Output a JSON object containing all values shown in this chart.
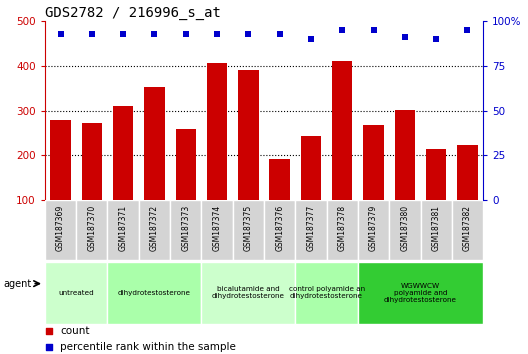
{
  "title": "GDS2782 / 216996_s_at",
  "samples": [
    "GSM187369",
    "GSM187370",
    "GSM187371",
    "GSM187372",
    "GSM187373",
    "GSM187374",
    "GSM187375",
    "GSM187376",
    "GSM187377",
    "GSM187378",
    "GSM187379",
    "GSM187380",
    "GSM187381",
    "GSM187382"
  ],
  "counts": [
    278,
    273,
    310,
    352,
    258,
    407,
    390,
    191,
    244,
    412,
    267,
    302,
    215,
    224
  ],
  "percentiles": [
    93,
    93,
    93,
    93,
    93,
    93,
    93,
    93,
    90,
    95,
    95,
    91,
    90,
    95
  ],
  "bar_color": "#cc0000",
  "dot_color": "#0000cc",
  "ylim_left": [
    100,
    500
  ],
  "ylim_right": [
    0,
    100
  ],
  "yticks_left": [
    100,
    200,
    300,
    400,
    500
  ],
  "yticks_right": [
    0,
    25,
    50,
    75,
    100
  ],
  "left_tick_color": "#cc0000",
  "right_tick_color": "#0000cc",
  "groups": [
    {
      "label": "untreated",
      "start": 0,
      "end": 1,
      "color": "#ccffcc"
    },
    {
      "label": "dihydrotestosterone",
      "start": 2,
      "end": 4,
      "color": "#aaffaa"
    },
    {
      "label": "bicalutamide and\ndihydrotestosterone",
      "start": 5,
      "end": 7,
      "color": "#ccffcc"
    },
    {
      "label": "control polyamide an\ndihydrotestosterone",
      "start": 8,
      "end": 9,
      "color": "#aaffaa"
    },
    {
      "label": "WGWWCW\npolyamide and\ndihydrotestosterone",
      "start": 10,
      "end": 13,
      "color": "#33cc33"
    }
  ],
  "legend_count_label": "count",
  "legend_pct_label": "percentile rank within the sample",
  "agent_label": "agent",
  "background_color": "#ffffff",
  "sample_box_color": "#d4d4d4",
  "dotted_grid_color": "#000000"
}
